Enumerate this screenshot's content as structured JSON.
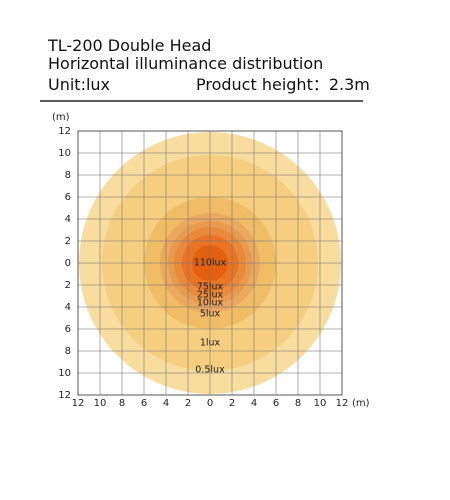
{
  "header": {
    "title": "TL-200 Double Head",
    "subtitle": "Horizontal illuminance distribution",
    "unit": "Unit:lux",
    "height": "Product height：2.3m"
  },
  "axis": {
    "x_unit": "(m)",
    "y_unit": "(m)",
    "x_ticks": [
      12,
      10,
      8,
      6,
      4,
      2,
      0,
      2,
      4,
      6,
      8,
      10,
      12
    ],
    "y_ticks": [
      12,
      10,
      8,
      6,
      4,
      2,
      0,
      2,
      4,
      6,
      8,
      10,
      12
    ]
  },
  "contour_labels": [
    "110lux",
    "75lux",
    "25lux",
    "10lux",
    "5lux",
    "1lux",
    "0.5lux"
  ]
}
